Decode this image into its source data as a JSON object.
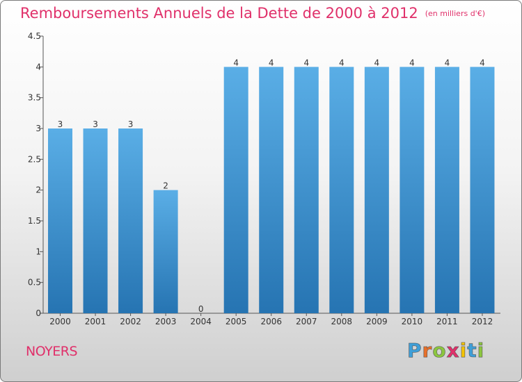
{
  "header": {
    "title": "Remboursements Annuels de la Dette de 2000 à 2012",
    "unit": "(en milliers d'€)"
  },
  "footer": {
    "commune": "NOYERS",
    "brand": "Proxiti",
    "brand_letters": [
      {
        "ch": "P",
        "color": "#3f9fd8"
      },
      {
        "ch": "r",
        "color": "#e8702a"
      },
      {
        "ch": "o",
        "color": "#8cc63f"
      },
      {
        "ch": "x",
        "color": "#e0306a"
      },
      {
        "ch": "i",
        "color": "#f5c400"
      },
      {
        "ch": "t",
        "color": "#3f9fd8"
      },
      {
        "ch": "i",
        "color": "#8cc63f"
      }
    ]
  },
  "chart_data": {
    "type": "bar",
    "title": "Remboursements Annuels de la Dette de 2000 à 2012",
    "subtitle": "(en milliers d'€)",
    "xlabel": "",
    "ylabel": "",
    "categories": [
      "2000",
      "2001",
      "2002",
      "2003",
      "2004",
      "2005",
      "2006",
      "2007",
      "2008",
      "2009",
      "2010",
      "2011",
      "2012"
    ],
    "values": [
      3,
      3,
      3,
      2,
      0,
      4,
      4,
      4,
      4,
      4,
      4,
      4,
      4
    ],
    "data_labels": [
      "3",
      "3",
      "3",
      "2",
      "0",
      "4",
      "4",
      "4",
      "4",
      "4",
      "4",
      "4",
      "4"
    ],
    "ylim": [
      0,
      4.5
    ],
    "yticks": [
      0,
      0.5,
      1,
      1.5,
      2,
      2.5,
      3,
      3.5,
      4,
      4.5
    ],
    "ytick_labels": [
      "0",
      "0.5",
      "1",
      "1.5",
      "2",
      "2.5",
      "3",
      "3.5",
      "4",
      "4.5"
    ],
    "grid": false,
    "colors": {
      "bar_top": "#5aaee6",
      "bar_bottom": "#2674b2",
      "axis": "#555555",
      "text": "#333333"
    }
  }
}
